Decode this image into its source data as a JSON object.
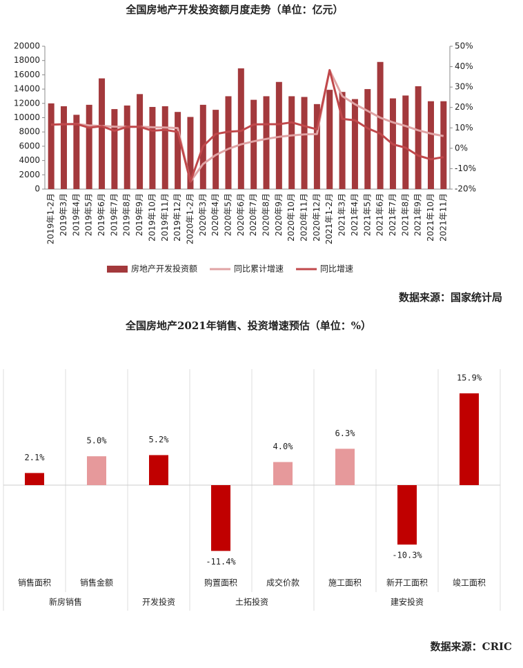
{
  "chart_data": [
    {
      "type": "combo",
      "title": "全国房地产开发投资额月度走势（单位：亿元）",
      "source": "数据来源：国家统计局",
      "categories": [
        "2019年1-2月",
        "2019年3月",
        "2019年4月",
        "2019年5月",
        "2019年6月",
        "2019年7月",
        "2019年8月",
        "2019年9月",
        "2019年10月",
        "2019年11月",
        "2019年12月",
        "2020年1-2月",
        "2020年3月",
        "2020年4月",
        "2020年5月",
        "2020年6月",
        "2020年7月",
        "2020年8月",
        "2020年9月",
        "2020年10月",
        "2020年11月",
        "2020年12月",
        "2021年1-2月",
        "2021年3月",
        "2021年4月",
        "2021年5月",
        "2021年6月",
        "2021年7月",
        "2021年8月",
        "2021年9月",
        "2021年10月",
        "2021年11月"
      ],
      "series": [
        {
          "name": "房地产开发投资额",
          "type": "bar",
          "color": "#a3393c",
          "values": [
            12000,
            11600,
            10400,
            11800,
            15500,
            11200,
            11700,
            13300,
            11500,
            11600,
            10800,
            10100,
            11800,
            11100,
            13000,
            16900,
            12500,
            13000,
            15000,
            13000,
            12900,
            11900,
            13900,
            13600,
            12600,
            14000,
            17800,
            12700,
            13100,
            14400,
            12300,
            12300
          ]
        },
        {
          "name": "同比累计增速",
          "type": "line",
          "axis": "y2",
          "color": "#e0a3a4",
          "values": [
            11.6,
            11.8,
            11.9,
            11.2,
            10.9,
            10.6,
            10.5,
            10.5,
            10.3,
            10.2,
            9.9,
            -16.3,
            -7.7,
            -3.3,
            -0.3,
            1.9,
            3.4,
            4.6,
            5.6,
            6.3,
            6.8,
            7.0,
            38.3,
            25.6,
            21.6,
            18.3,
            15.0,
            12.7,
            10.9,
            8.8,
            7.2,
            6.0
          ]
        },
        {
          "name": "同比增速",
          "type": "line",
          "axis": "y2",
          "color": "#c0484b",
          "values": [
            11.6,
            11.8,
            11.9,
            10.1,
            10.8,
            8.5,
            10.5,
            10.5,
            8.6,
            9.0,
            8.0,
            -16.3,
            1.0,
            7.0,
            8.1,
            8.5,
            11.7,
            11.8,
            11.8,
            12.7,
            10.9,
            9.3,
            38.3,
            14.4,
            13.7,
            9.8,
            7.2,
            1.9,
            0.3,
            -3.6,
            -5.4,
            -4.3
          ]
        }
      ],
      "ylim": [
        0,
        20000
      ],
      "yticks": [
        0,
        2000,
        4000,
        6000,
        8000,
        10000,
        12000,
        14000,
        16000,
        18000,
        20000
      ],
      "y2lim": [
        -20,
        50
      ],
      "y2ticks": [
        {
          "value": -20,
          "label": "-20%"
        },
        {
          "value": -10,
          "label": "-10%"
        },
        {
          "value": 0,
          "label": "0%"
        },
        {
          "value": 10,
          "label": "10%"
        },
        {
          "value": 20,
          "label": "20%"
        },
        {
          "value": 30,
          "label": "30%"
        },
        {
          "value": 40,
          "label": "40%"
        },
        {
          "value": 50,
          "label": "50%"
        }
      ],
      "legend": "bottom"
    },
    {
      "type": "bar",
      "title": "全国房地产2021年销售、投资增速预估（单位：%）",
      "source": "数据来源：CRIC",
      "categories": [
        "销售面积",
        "销售金额",
        null,
        "购置面积",
        "成交价款",
        "施工面积",
        "新开工面积",
        "竣工面积"
      ],
      "groups": [
        {
          "name": "新房销售",
          "span": 2
        },
        {
          "name": "开发投资",
          "span": 1
        },
        {
          "name": "土拓投资",
          "span": 2
        },
        {
          "name": "建安投资",
          "span": 3
        }
      ],
      "values": [
        2.1,
        5.0,
        5.2,
        -11.4,
        4.0,
        6.3,
        -10.3,
        15.9
      ],
      "value_labels": [
        "2.1%",
        "5.0%",
        "5.2%",
        "-11.4%",
        "4.0%",
        "6.3%",
        "-10.3%",
        "15.9%"
      ],
      "colors": [
        "#c00000",
        "#e6999b",
        "#c00000",
        "#c00000",
        "#e6999b",
        "#e6999b",
        "#c00000",
        "#c00000"
      ]
    }
  ]
}
